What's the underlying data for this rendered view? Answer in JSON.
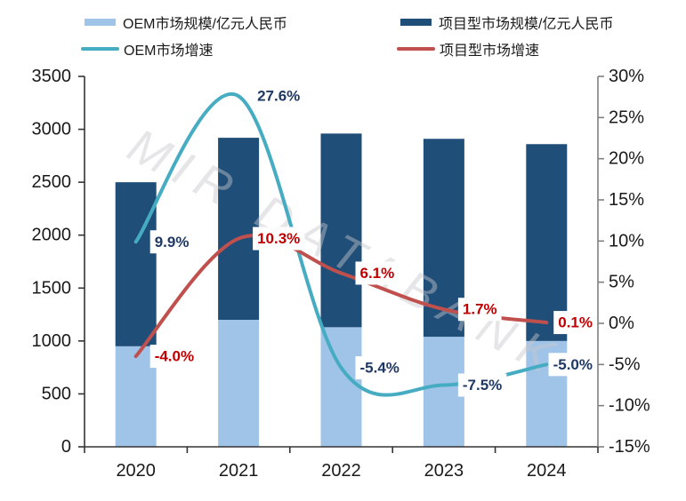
{
  "legend": {
    "items": [
      {
        "label": "OEM市场规模/亿元人民币",
        "swatch": "rect",
        "color": "#A0C4E8"
      },
      {
        "label": "项目型市场规模/亿元人民币",
        "swatch": "rect",
        "color": "#1F4E79"
      },
      {
        "label": "OEM市场增速",
        "swatch": "line",
        "color": "#46ACC2"
      },
      {
        "label": "项目型市场增速",
        "swatch": "line",
        "color": "#C0504D"
      }
    ]
  },
  "chart_data": {
    "type": "combo",
    "categories": [
      "2020",
      "2021",
      "2022",
      "2023",
      "2024"
    ],
    "bar_series": [
      {
        "name": "OEM市场规模/亿元人民币",
        "color": "#A0C4E8",
        "values": [
          950,
          1200,
          1130,
          1040,
          1000
        ]
      },
      {
        "name": "项目型市场规模/亿元人民币",
        "color": "#1F4E79",
        "values": [
          1550,
          1720,
          1830,
          1870,
          1860
        ]
      }
    ],
    "line_series": [
      {
        "name": "OEM市场增速",
        "color": "#46ACC2",
        "label_color": "#1F3864",
        "values": [
          9.9,
          27.6,
          -5.4,
          -7.5,
          -5.0
        ],
        "labels": [
          "9.9%",
          "27.6%",
          "-5.4%",
          "-7.5%",
          "-5.0%"
        ]
      },
      {
        "name": "项目型市场增速",
        "color": "#C0504D",
        "label_color": "#C00000",
        "values": [
          -4.0,
          10.3,
          6.1,
          1.7,
          0.1
        ],
        "labels": [
          "-4.0%",
          "10.3%",
          "6.1%",
          "1.7%",
          "0.1%"
        ]
      }
    ],
    "left_axis": {
      "min": 0,
      "max": 3500,
      "step": 500,
      "tick_labels": [
        "0",
        "500",
        "1000",
        "1500",
        "2000",
        "2500",
        "3000",
        "3500"
      ]
    },
    "right_axis": {
      "min": -15,
      "max": 30,
      "step": 5,
      "tick_labels": [
        "-15%",
        "-10%",
        "-5%",
        "0%",
        "5%",
        "10%",
        "15%",
        "20%",
        "25%",
        "30%"
      ]
    },
    "watermark": "MIR DATABANK"
  }
}
